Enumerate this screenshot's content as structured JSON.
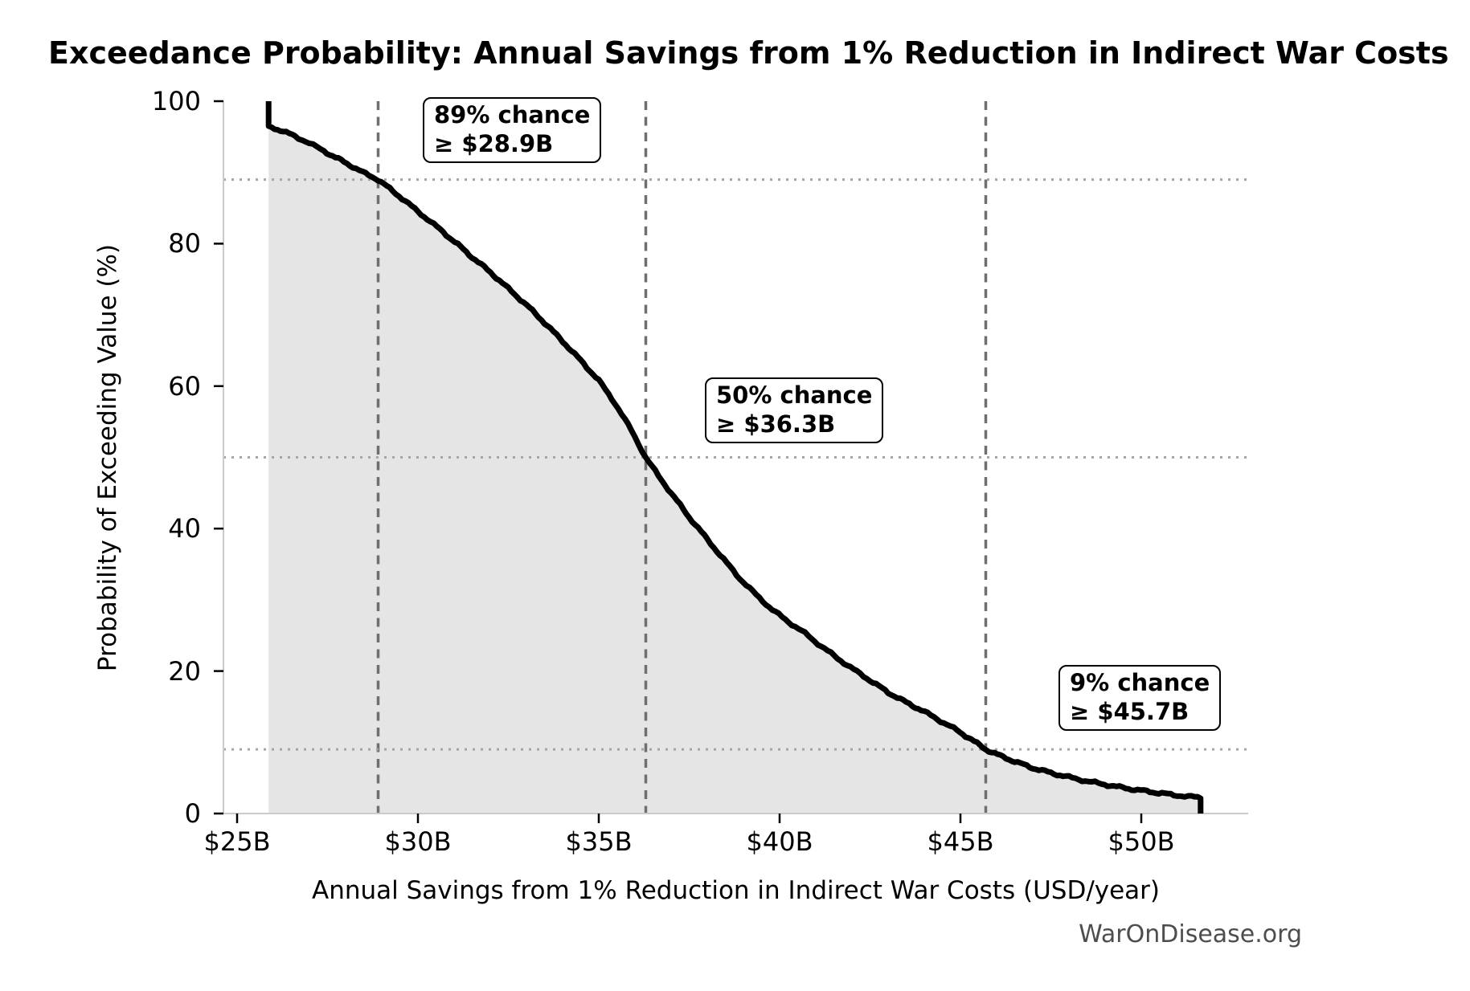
{
  "chart_data": {
    "type": "line",
    "variant": "exceedance-probability-curve-with-shaded-area",
    "title": "Exceedance Probability: Annual Savings from 1% Reduction in Indirect War Costs",
    "xlabel": "Annual Savings from 1% Reduction in Indirect War Costs (USD/year)",
    "ylabel": "Probability of Exceeding Value (%)",
    "x_ticks": {
      "values": [
        25,
        30,
        35,
        40,
        45,
        50
      ],
      "labels": [
        "$25B",
        "$30B",
        "$35B",
        "$40B",
        "$45B",
        "$50B"
      ]
    },
    "y_ticks": {
      "values": [
        0,
        20,
        40,
        60,
        80,
        100
      ],
      "labels": [
        "0",
        "20",
        "40",
        "60",
        "80",
        "100"
      ]
    },
    "xlim_billion": [
      24.6,
      53.0
    ],
    "ylim_pct": [
      0,
      100
    ],
    "grid": "off",
    "legend": "none",
    "x_unit": "billion USD per year",
    "y_unit": "percent",
    "points_value_vs_probability": [
      [
        25.87,
        100
      ],
      [
        25.87,
        96.5
      ],
      [
        26.2,
        95.9
      ],
      [
        26.6,
        95.1
      ],
      [
        27.0,
        94.1
      ],
      [
        27.4,
        93.0
      ],
      [
        27.8,
        91.9
      ],
      [
        28.2,
        90.8
      ],
      [
        28.55,
        89.8
      ],
      [
        28.9,
        89.0
      ],
      [
        29.3,
        87.4
      ],
      [
        29.65,
        86.0
      ],
      [
        30.0,
        84.5
      ],
      [
        30.35,
        83.1
      ],
      [
        30.7,
        81.6
      ],
      [
        31.1,
        79.9
      ],
      [
        31.5,
        78.1
      ],
      [
        32.0,
        76.0
      ],
      [
        32.5,
        73.7
      ],
      [
        33.0,
        71.4
      ],
      [
        33.5,
        68.9
      ],
      [
        34.0,
        66.3
      ],
      [
        34.5,
        63.6
      ],
      [
        35.0,
        60.8
      ],
      [
        35.45,
        57.6
      ],
      [
        35.9,
        53.8
      ],
      [
        36.3,
        50.0
      ],
      [
        36.65,
        47.4
      ],
      [
        37.0,
        45.0
      ],
      [
        37.5,
        41.6
      ],
      [
        38.0,
        38.5
      ],
      [
        38.45,
        35.7
      ],
      [
        38.9,
        33.0
      ],
      [
        39.35,
        30.7
      ],
      [
        39.8,
        28.6
      ],
      [
        40.25,
        26.9
      ],
      [
        40.7,
        25.3
      ],
      [
        41.15,
        23.5
      ],
      [
        41.6,
        21.8
      ],
      [
        42.05,
        20.2
      ],
      [
        42.5,
        18.7
      ],
      [
        43.0,
        17.0
      ],
      [
        43.5,
        15.6
      ],
      [
        44.0,
        14.3
      ],
      [
        44.45,
        13.0
      ],
      [
        44.9,
        11.7
      ],
      [
        45.3,
        10.4
      ],
      [
        45.7,
        9.0
      ],
      [
        46.1,
        8.1
      ],
      [
        46.5,
        7.3
      ],
      [
        47.0,
        6.4
      ],
      [
        47.5,
        5.7
      ],
      [
        48.0,
        5.1
      ],
      [
        48.45,
        4.6
      ],
      [
        48.9,
        4.15
      ],
      [
        49.4,
        3.7
      ],
      [
        49.9,
        3.3
      ],
      [
        50.4,
        2.95
      ],
      [
        50.9,
        2.6
      ],
      [
        51.3,
        2.4
      ],
      [
        51.64,
        2.2
      ],
      [
        51.64,
        0
      ]
    ],
    "annotations": [
      {
        "probability_pct": 89,
        "value_billion": 28.9,
        "line1": "89% chance",
        "line2": "≥ $28.9B"
      },
      {
        "probability_pct": 50,
        "value_billion": 36.3,
        "line1": "50% chance",
        "line2": "≥ $36.3B"
      },
      {
        "probability_pct": 9,
        "value_billion": 45.7,
        "line1": "9% chance",
        "line2": "≥ $45.7B"
      }
    ],
    "watermark": "WarOnDisease.org"
  },
  "colors": {
    "curve": "#000000",
    "area_fill": "#e5e5e5",
    "dashed_guide": "#6f6f6f",
    "dotted_guide": "#a5a5a5",
    "spine": "#cbcbcb",
    "tick": "#000000",
    "text": "#000000",
    "watermark_text": "#4d4d4d",
    "background": "#ffffff"
  }
}
